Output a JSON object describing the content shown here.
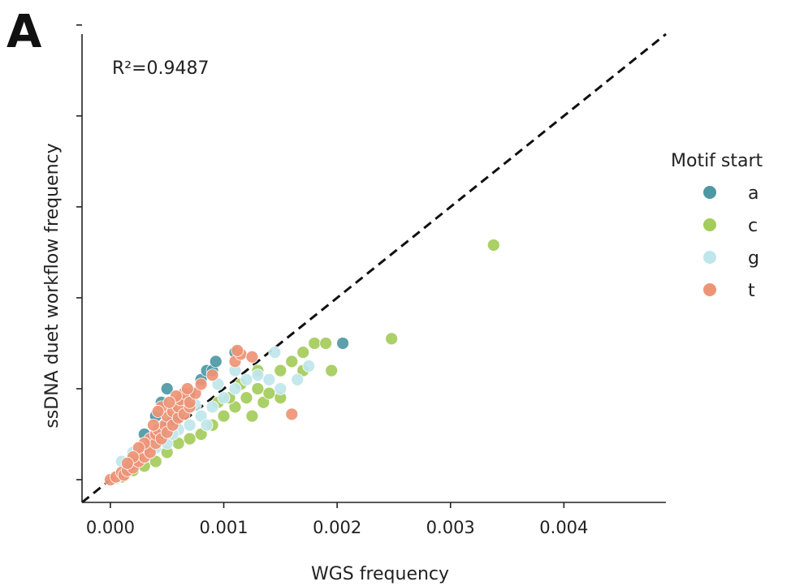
{
  "panel_label": "A",
  "colors": {
    "a": "#4e98a4",
    "c": "#a4cc5a",
    "g": "#bfe6ea",
    "t": "#ee9476",
    "identity_line": "#111111",
    "axis": "#222222"
  },
  "chart_data": {
    "type": "scatter",
    "title": "",
    "xlabel": "WGS frequency",
    "ylabel": "ssDNA duet workflow frequency",
    "xlim": [
      -0.00025,
      0.0049
    ],
    "ylim": [
      -0.00025,
      0.0049
    ],
    "x_ticks": [
      0.0,
      0.001,
      0.002,
      0.003,
      0.004
    ],
    "x_tick_labels": [
      "0.000",
      "0.001",
      "0.002",
      "0.003",
      "0.004"
    ],
    "y_ticks": [
      0.0,
      0.001,
      0.002,
      0.003,
      0.004,
      0.005
    ],
    "y_tick_labels": [
      "",
      "",
      "",
      "",
      "",
      ""
    ],
    "annotation": "R²=0.9487",
    "reference_line": "y = x (dashed)",
    "grid": false,
    "legend": {
      "title": "Motif start",
      "placement": "right",
      "entries": [
        "a",
        "c",
        "g",
        "t"
      ]
    },
    "series": [
      {
        "name": "a",
        "points": [
          [
            5e-05,
            1e-05
          ],
          [
            0.0001,
            5e-05
          ],
          [
            0.00015,
            0.0001
          ],
          [
            0.0002,
            0.00015
          ],
          [
            0.00025,
            0.0002
          ],
          [
            0.0003,
            0.00025
          ],
          [
            0.00035,
            0.0003
          ],
          [
            0.0004,
            0.0004
          ],
          [
            0.00045,
            0.00055
          ],
          [
            0.0005,
            0.0006
          ],
          [
            0.00055,
            0.00065
          ],
          [
            0.0006,
            0.0007
          ],
          [
            0.00065,
            0.00085
          ],
          [
            0.0007,
            0.00095
          ],
          [
            0.0008,
            0.0011
          ],
          [
            0.00085,
            0.0012
          ],
          [
            0.0009,
            0.0012
          ],
          [
            0.00093,
            0.0013
          ],
          [
            0.0005,
            0.001
          ],
          [
            0.00045,
            0.00085
          ],
          [
            0.0011,
            0.0014
          ],
          [
            0.00205,
            0.0015
          ],
          [
            0.0003,
            0.0005
          ],
          [
            0.0004,
            0.0007
          ]
        ]
      },
      {
        "name": "c",
        "points": [
          [
            3e-05,
            1e-05
          ],
          [
            0.0001,
            3e-05
          ],
          [
            0.0002,
            0.0001
          ],
          [
            0.0003,
            0.00015
          ],
          [
            0.0004,
            0.0002
          ],
          [
            0.0005,
            0.0003
          ],
          [
            0.0006,
            0.0004
          ],
          [
            0.0007,
            0.00045
          ],
          [
            0.0008,
            0.0005
          ],
          [
            0.0009,
            0.0006
          ],
          [
            0.001,
            0.0007
          ],
          [
            0.0011,
            0.0008
          ],
          [
            0.0012,
            0.0009
          ],
          [
            0.0013,
            0.001
          ],
          [
            0.00135,
            0.00085
          ],
          [
            0.0014,
            0.00095
          ],
          [
            0.0015,
            0.0012
          ],
          [
            0.0016,
            0.0013
          ],
          [
            0.0017,
            0.0012
          ],
          [
            0.0018,
            0.0015
          ],
          [
            0.0019,
            0.0015
          ],
          [
            0.00195,
            0.0012
          ],
          [
            0.0017,
            0.0014
          ],
          [
            0.0015,
            0.0009
          ],
          [
            0.0013,
            0.0012
          ],
          [
            0.00125,
            0.0007
          ],
          [
            0.00115,
            0.00105
          ],
          [
            0.00105,
            0.0009
          ],
          [
            0.00095,
            0.00085
          ],
          [
            0.00248,
            0.00155
          ],
          [
            0.00338,
            0.00258
          ]
        ]
      },
      {
        "name": "g",
        "points": [
          [
            5e-05,
            2e-05
          ],
          [
            0.0001,
            6e-05
          ],
          [
            0.00015,
            0.0001
          ],
          [
            0.0002,
            0.00015
          ],
          [
            0.00025,
            0.0002
          ],
          [
            0.0003,
            0.00025
          ],
          [
            0.00035,
            0.0003
          ],
          [
            0.0004,
            0.00035
          ],
          [
            0.0005,
            0.0004
          ],
          [
            0.0006,
            0.00055
          ],
          [
            0.0007,
            0.0006
          ],
          [
            0.0008,
            0.0007
          ],
          [
            0.00085,
            0.0006
          ],
          [
            0.0009,
            0.0008
          ],
          [
            0.001,
            0.0009
          ],
          [
            0.0011,
            0.001
          ],
          [
            0.0012,
            0.0011
          ],
          [
            0.0013,
            0.00115
          ],
          [
            0.0014,
            0.0011
          ],
          [
            0.0015,
            0.001
          ],
          [
            0.00165,
            0.0011
          ],
          [
            0.00175,
            0.00125
          ],
          [
            0.00145,
            0.0014
          ],
          [
            0.0011,
            0.0012
          ],
          [
            0.00095,
            0.00105
          ],
          [
            0.00075,
            0.00082
          ],
          [
            0.00055,
            0.0005
          ],
          [
            0.00065,
            0.00075
          ],
          [
            0.0002,
            0.0003
          ],
          [
            0.0001,
            0.0002
          ]
        ]
      },
      {
        "name": "t",
        "points": [
          [
            0.0,
            0.0
          ],
          [
            5e-05,
            3e-05
          ],
          [
            0.0001,
            8e-05
          ],
          [
            0.00012,
            5e-05
          ],
          [
            0.00015,
            0.0001
          ],
          [
            0.00018,
            0.00016
          ],
          [
            0.0002,
            0.00013
          ],
          [
            0.00022,
            0.00022
          ],
          [
            0.00025,
            0.0002
          ],
          [
            0.00028,
            0.00028
          ],
          [
            0.0003,
            0.00025
          ],
          [
            0.00032,
            0.00035
          ],
          [
            0.00035,
            0.0003
          ],
          [
            0.00035,
            0.00045
          ],
          [
            0.0004,
            0.0004
          ],
          [
            0.0004,
            0.0005
          ],
          [
            0.00042,
            0.00055
          ],
          [
            0.00045,
            0.00045
          ],
          [
            0.00048,
            0.0006
          ],
          [
            0.0005,
            0.00052
          ],
          [
            0.0005,
            0.0007
          ],
          [
            0.00055,
            0.0006
          ],
          [
            0.00055,
            0.00075
          ],
          [
            0.0006,
            0.00068
          ],
          [
            0.0006,
            0.0008
          ],
          [
            0.00062,
            0.00088
          ],
          [
            0.00065,
            0.00072
          ],
          [
            0.00065,
            0.00095
          ],
          [
            0.0007,
            0.0008
          ],
          [
            0.0007,
            0.00085
          ],
          [
            0.00075,
            0.00095
          ],
          [
            0.0008,
            0.00105
          ],
          [
            0.0009,
            0.00115
          ],
          [
            0.0011,
            0.0013
          ],
          [
            0.00115,
            0.00138
          ],
          [
            0.00112,
            0.00142
          ],
          [
            0.00125,
            0.00135
          ],
          [
            0.0016,
            0.00072
          ],
          [
            0.00045,
            0.0008
          ],
          [
            0.00038,
            0.0006
          ],
          [
            0.0003,
            0.0004
          ],
          [
            0.00025,
            0.00035
          ],
          [
            0.0002,
            0.00025
          ],
          [
            0.00015,
            0.00018
          ],
          [
            0.00058,
            0.00092
          ],
          [
            0.00068,
            0.001
          ],
          [
            0.00052,
            0.00085
          ],
          [
            0.00042,
            0.00075
          ]
        ]
      }
    ]
  }
}
